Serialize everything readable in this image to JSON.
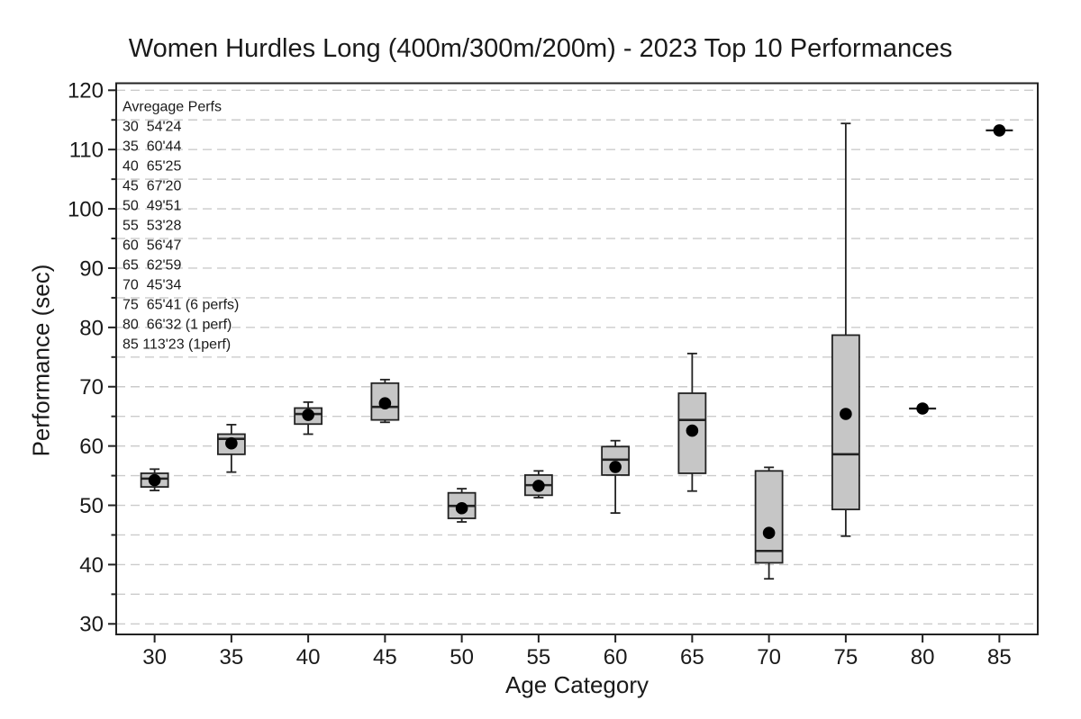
{
  "title": "Women Hurdles Long (400m/300m/200m) - 2023 Top 10 Performances",
  "chart_data": {
    "type": "boxplot",
    "title": "Women Hurdles Long (400m/300m/200m) - 2023 Top 10 Performances",
    "xlabel": "Age Category",
    "ylabel": "Performance (sec)",
    "ylim": [
      28.2,
      121.3
    ],
    "ytick_min": 30,
    "ytick_max": 120,
    "ytick_major_step": 10,
    "ytick_minor_step": 5,
    "grid": "horizontal dashed lines every 5 units",
    "legend_position": "none",
    "categories": [
      "30",
      "35",
      "40",
      "45",
      "50",
      "55",
      "60",
      "65",
      "70",
      "75",
      "80",
      "85"
    ],
    "boxes": [
      {
        "category": "30",
        "low": 52.5,
        "q1": 53.1,
        "median": 54.5,
        "q3": 55.4,
        "high": 56.1,
        "mean": 54.24
      },
      {
        "category": "35",
        "low": 55.6,
        "q1": 58.6,
        "median": 61.2,
        "q3": 62.0,
        "high": 63.6,
        "mean": 60.44
      },
      {
        "category": "40",
        "low": 62.0,
        "q1": 63.7,
        "median": 65.4,
        "q3": 66.4,
        "high": 67.4,
        "mean": 65.25
      },
      {
        "category": "45",
        "low": 64.0,
        "q1": 64.4,
        "median": 66.6,
        "q3": 70.6,
        "high": 71.2,
        "mean": 67.2
      },
      {
        "category": "50",
        "low": 47.2,
        "q1": 47.8,
        "median": 49.9,
        "q3": 52.1,
        "high": 52.8,
        "mean": 49.51
      },
      {
        "category": "55",
        "low": 51.3,
        "q1": 51.7,
        "median": 53.4,
        "q3": 55.1,
        "high": 55.8,
        "mean": 53.28
      },
      {
        "category": "60",
        "low": 48.7,
        "q1": 55.1,
        "median": 57.7,
        "q3": 59.9,
        "high": 60.9,
        "mean": 56.47
      },
      {
        "category": "65",
        "low": 52.4,
        "q1": 55.4,
        "median": 64.4,
        "q3": 68.9,
        "high": 75.6,
        "mean": 62.59
      },
      {
        "category": "70",
        "low": 37.6,
        "q1": 40.3,
        "median": 42.3,
        "q3": 55.8,
        "high": 56.4,
        "mean": 45.34
      },
      {
        "category": "75",
        "low": 44.8,
        "q1": 49.3,
        "median": 58.6,
        "q3": 78.7,
        "high": 114.4,
        "mean": 65.41
      },
      {
        "category": "80",
        "single": 66.32,
        "mean": 66.32
      },
      {
        "category": "85",
        "single": 113.23,
        "mean": 113.23
      }
    ],
    "annotation": {
      "lines": [
        "Avregage Perfs",
        "30  54'24",
        "35  60'44",
        "40  65'25",
        "45  67'20",
        "50  49'51",
        "55  53'28",
        "60  56'47",
        "65  62'59",
        "70  45'34",
        "75  65'41 (6 perfs)",
        "80  66'32 (1 perf)",
        "85 113'23 (1perf)"
      ]
    },
    "colors": {
      "box_fill": "#c6c6c6",
      "box_stroke": "#222222",
      "median_line": "#222222",
      "mean_dot": "#000000",
      "grid_line": "#cbcbcb",
      "axis_line": "#222222",
      "text": "#1a1a1a"
    }
  }
}
